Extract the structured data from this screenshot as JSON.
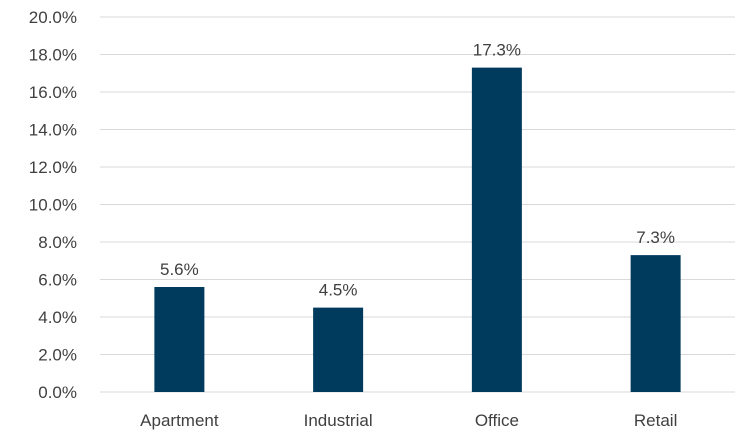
{
  "chart_data": {
    "type": "bar",
    "categories": [
      "Apartment",
      "Industrial",
      "Office",
      "Retail"
    ],
    "values": [
      5.6,
      4.5,
      17.3,
      7.3
    ],
    "data_labels": [
      "5.6%",
      "4.5%",
      "17.3%",
      "7.3%"
    ],
    "title": "",
    "xlabel": "",
    "ylabel": "",
    "ylim": [
      0,
      20
    ],
    "y_ticks": [
      0,
      2,
      4,
      6,
      8,
      10,
      12,
      14,
      16,
      18,
      20
    ],
    "y_tick_labels": [
      "0.0%",
      "2.0%",
      "4.0%",
      "6.0%",
      "8.0%",
      "10.0%",
      "12.0%",
      "14.0%",
      "16.0%",
      "18.0%",
      "20.0%"
    ],
    "grid": true,
    "legend": "none",
    "bar_color": "#003A5D",
    "grid_color": "#D9D9D9"
  }
}
